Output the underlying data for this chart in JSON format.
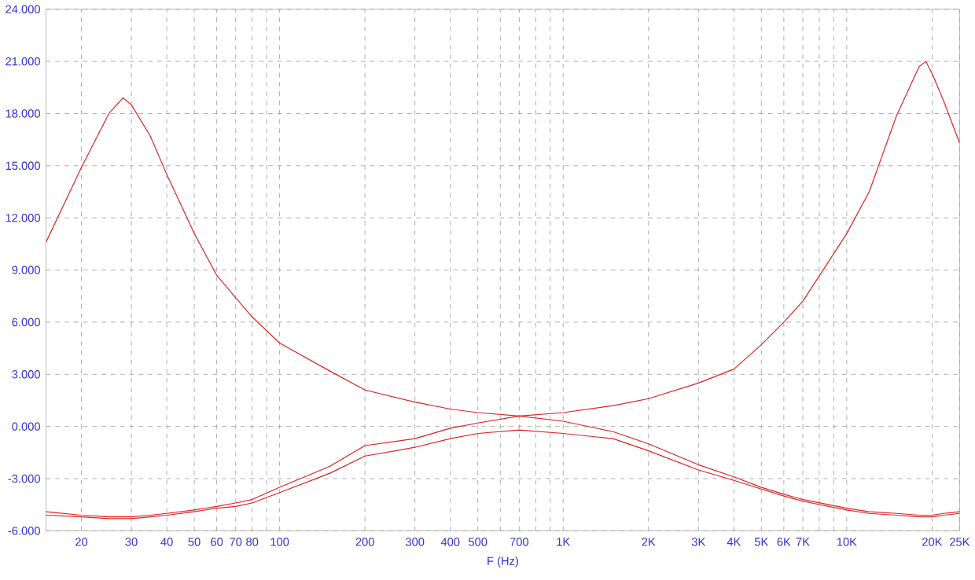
{
  "chart_data": {
    "type": "line",
    "xlabel": "F (Hz)",
    "log": "x",
    "grid": true,
    "marker": "none",
    "line_style": "solid",
    "x": [
      15,
      20,
      25,
      28,
      30,
      35,
      40,
      50,
      60,
      70,
      80,
      100,
      150,
      200,
      300,
      400,
      500,
      700,
      1000,
      1500,
      2000,
      3000,
      4000,
      5000,
      6000,
      7000,
      10000,
      12000,
      15000,
      18000,
      19000,
      20000,
      22000,
      25000
    ],
    "series": [
      {
        "color": "#dd2222",
        "values": [
          10.6,
          14.9,
          18.0,
          18.9,
          18.5,
          16.7,
          14.5,
          11.1,
          8.7,
          7.4,
          6.3,
          4.8,
          3.2,
          2.1,
          1.4,
          1.0,
          0.8,
          0.6,
          0.8,
          1.2,
          1.6,
          2.5,
          3.3,
          4.7,
          6.0,
          7.2,
          11.1,
          13.5,
          17.9,
          20.7,
          21.0,
          20.3,
          18.7,
          16.3
        ]
      },
      {
        "color": "#dd2222",
        "values": [
          -4.9,
          -5.1,
          -5.2,
          -5.2,
          -5.2,
          -5.1,
          -5.0,
          -4.8,
          -4.6,
          -4.4,
          -4.2,
          -3.5,
          -2.3,
          -1.1,
          -0.7,
          -0.1,
          0.2,
          0.6,
          0.3,
          -0.3,
          -1.0,
          -2.2,
          -2.9,
          -3.5,
          -3.9,
          -4.2,
          -4.7,
          -4.9,
          -5.0,
          -5.1,
          -5.1,
          -5.1,
          -5.0,
          -4.9
        ]
      },
      {
        "color": "#dd2222",
        "values": [
          -5.1,
          -5.2,
          -5.3,
          -5.3,
          -5.3,
          -5.2,
          -5.1,
          -4.9,
          -4.7,
          -4.6,
          -4.4,
          -3.8,
          -2.7,
          -1.7,
          -1.2,
          -0.7,
          -0.4,
          -0.2,
          -0.4,
          -0.7,
          -1.4,
          -2.5,
          -3.1,
          -3.6,
          -4.0,
          -4.3,
          -4.8,
          -5.0,
          -5.1,
          -5.2,
          -5.2,
          -5.2,
          -5.1,
          -5.0
        ]
      }
    ],
    "xlim": [
      15,
      25000
    ],
    "xticks": [
      20,
      30,
      40,
      50,
      60,
      70,
      80,
      {
        "value": 90,
        "label": null
      },
      100,
      200,
      300,
      400,
      500,
      {
        "value": 600,
        "label": null
      },
      700,
      {
        "value": 800,
        "label": null
      },
      {
        "value": 900,
        "label": null
      },
      {
        "value": 1000,
        "label": "1K"
      },
      {
        "value": 2000,
        "label": "2K"
      },
      {
        "value": 3000,
        "label": "3K"
      },
      {
        "value": 4000,
        "label": "4K"
      },
      {
        "value": 5000,
        "label": "5K"
      },
      {
        "value": 6000,
        "label": "6K"
      },
      {
        "value": 7000,
        "label": "7K"
      },
      {
        "value": 8000,
        "label": null
      },
      {
        "value": 9000,
        "label": null
      },
      {
        "value": 10000,
        "label": "10K"
      },
      {
        "value": 20000,
        "label": "20K"
      },
      {
        "value": 25000,
        "label": "25K"
      }
    ],
    "ylim": [
      -6,
      24
    ],
    "yticks": [
      {
        "value": -6,
        "label": "-6.000"
      },
      {
        "value": -3,
        "label": "-3.000"
      },
      {
        "value": 0,
        "label": "0.000"
      },
      {
        "value": 3,
        "label": "3.000"
      },
      {
        "value": 6,
        "label": "6.000"
      },
      {
        "value": 9,
        "label": "9.000"
      },
      {
        "value": 12,
        "label": "12.000"
      },
      {
        "value": 15,
        "label": "15.000"
      },
      {
        "value": 18,
        "label": "18.000"
      },
      {
        "value": 21,
        "label": "21.000"
      },
      {
        "value": 24,
        "label": "24.000"
      }
    ]
  }
}
